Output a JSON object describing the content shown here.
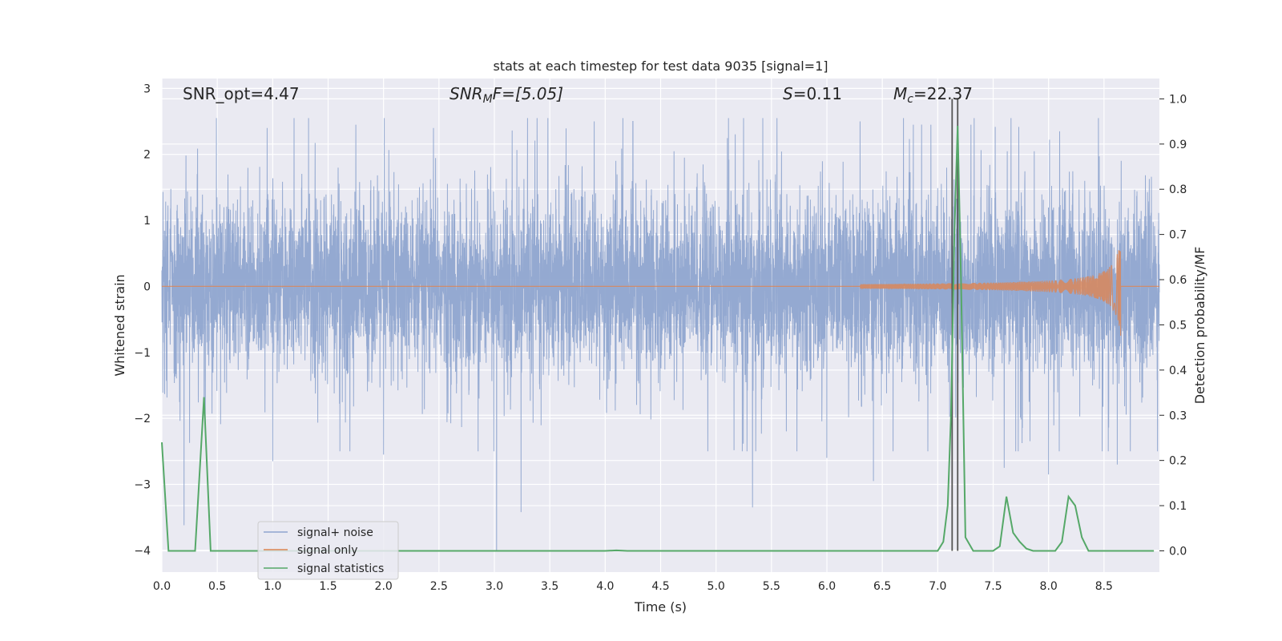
{
  "chart_data": {
    "type": "line",
    "title": "stats at each timestep for test data 9035 [signal=1]",
    "xlabel": "Time (s)",
    "ylabel_left": "Whitened strain",
    "ylabel_right": "Detection probability/MF",
    "xlim": [
      0.0,
      9.0
    ],
    "ylim_left": [
      -4.33,
      3.15
    ],
    "ylim_right": [
      -0.047,
      1.045
    ],
    "x_ticks": [
      "0.0",
      "0.5",
      "1.0",
      "1.5",
      "2.0",
      "2.5",
      "3.0",
      "3.5",
      "4.0",
      "4.5",
      "5.0",
      "5.5",
      "6.0",
      "6.5",
      "7.0",
      "7.5",
      "8.0",
      "8.5"
    ],
    "y_ticks_left": [
      "−4",
      "−3",
      "−2",
      "−1",
      "0",
      "1",
      "2",
      "3"
    ],
    "y_ticks_right": [
      "0.0",
      "0.1",
      "0.2",
      "0.3",
      "0.4",
      "0.5",
      "0.6",
      "0.7",
      "0.8",
      "0.9",
      "1.0"
    ],
    "grid": true,
    "legend_position": "lower-left",
    "annotations": {
      "snr_opt": "SNR_opt=4.47",
      "snr_mf_prefix": "SNR",
      "snr_mf_sub": "M",
      "snr_mf_suffix": "F=[5.05]",
      "s_prefix": "S",
      "s_suffix": "=0.11",
      "mc_prefix": "M",
      "mc_sub": "c",
      "mc_suffix": "=22.37"
    },
    "vlines_x": [
      7.13,
      7.18
    ],
    "series": [
      {
        "name": "signal+ noise",
        "color": "#8fa5cf",
        "axis": "left",
        "description_values": "whitened noise, core amplitude ~0.95, bursts up to ~2.5, minima near -3.6 at t=0.2, -4.0 at t=3.02, -3.4 at t=3.24, -3.35 at t=5.33"
      },
      {
        "name": "signal only",
        "color": "#dd8452",
        "axis": "left",
        "chirp_start": 6.3,
        "chirp_end": 8.65,
        "peak_amplitude": 0.75
      },
      {
        "name": "signal statistics",
        "color": "#55a868",
        "axis": "right",
        "x": [
          0.0,
          0.06,
          0.12,
          0.18,
          0.24,
          0.3,
          0.38,
          0.44,
          0.5,
          0.56,
          0.7,
          1.0,
          2.0,
          3.0,
          4.0,
          4.1,
          4.2,
          5.0,
          6.0,
          6.5,
          7.0,
          7.05,
          7.09,
          7.12,
          7.15,
          7.18,
          7.21,
          7.25,
          7.32,
          7.4,
          7.5,
          7.56,
          7.62,
          7.68,
          7.74,
          7.8,
          7.86,
          7.92,
          8.0,
          8.06,
          8.12,
          8.18,
          8.24,
          8.3,
          8.36,
          8.44,
          8.6,
          8.8,
          8.95
        ],
        "y": [
          0.24,
          0.0,
          0.0,
          0.0,
          0.0,
          0.0,
          0.34,
          0.0,
          0.0,
          0.0,
          0.0,
          0.0,
          0.0,
          0.0,
          0.0,
          0.001,
          0.0,
          0.0,
          0.0,
          0.0,
          0.0,
          0.02,
          0.1,
          0.3,
          0.7,
          0.94,
          0.6,
          0.03,
          0.0,
          0.0,
          0.0,
          0.01,
          0.12,
          0.04,
          0.02,
          0.005,
          0.0,
          0.0,
          0.0,
          0.0,
          0.02,
          0.12,
          0.1,
          0.03,
          0.0,
          0.0,
          0.0,
          0.0,
          0.0
        ]
      }
    ]
  }
}
